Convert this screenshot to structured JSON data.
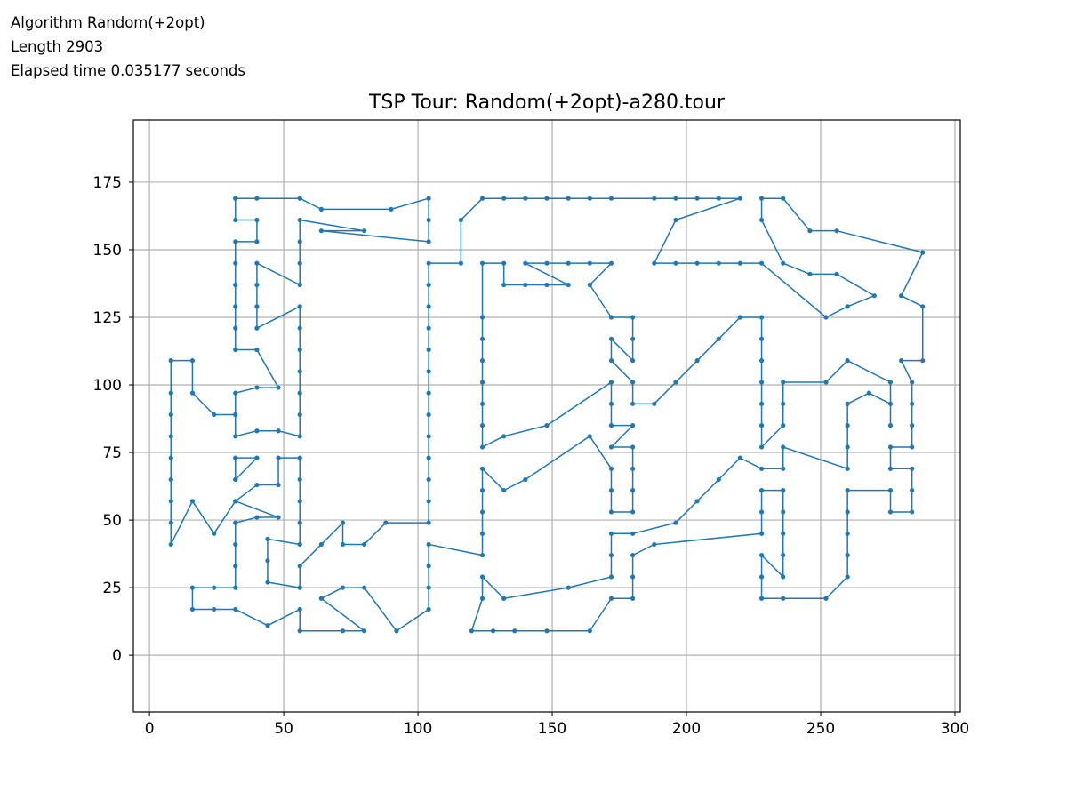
{
  "info": {
    "algorithm": "Algorithm Random(+2opt)",
    "length": "Length 2903",
    "elapsed": "Elapsed time 0.035177 seconds"
  },
  "chart_data": {
    "type": "line",
    "title": "TSP Tour: Random(+2opt)-a280.tour",
    "xlabel": "",
    "ylabel": "",
    "xlim": [
      -6,
      302
    ],
    "ylim": [
      -21,
      198
    ],
    "xticks": [
      0,
      50,
      100,
      150,
      200,
      250,
      300
    ],
    "yticks": [
      0,
      25,
      50,
      75,
      100,
      125,
      150,
      175
    ],
    "grid": true,
    "line_color": "#1f77b4",
    "marker_color": "#1f77b4",
    "series": [
      {
        "points": [
          [
            32,
            169
          ],
          [
            40,
            169
          ],
          [
            56,
            169
          ],
          [
            64,
            165
          ],
          [
            90,
            165
          ],
          [
            104,
            169
          ],
          [
            104,
            161
          ],
          [
            104,
            153
          ],
          [
            64,
            157
          ],
          [
            80,
            157
          ],
          [
            56,
            161
          ],
          [
            56,
            153
          ],
          [
            56,
            145
          ],
          [
            56,
            137
          ],
          [
            40,
            145
          ],
          [
            40,
            137
          ],
          [
            40,
            129
          ],
          [
            40,
            121
          ],
          [
            56,
            129
          ],
          [
            56,
            121
          ],
          [
            56,
            113
          ],
          [
            56,
            105
          ],
          [
            56,
            97
          ],
          [
            56,
            89
          ],
          [
            56,
            81
          ],
          [
            48,
            83
          ],
          [
            40,
            83
          ],
          [
            32,
            81
          ],
          [
            32,
            89
          ],
          [
            32,
            97
          ],
          [
            40,
            99
          ],
          [
            48,
            99
          ],
          [
            40,
            113
          ],
          [
            32,
            113
          ],
          [
            32,
            121
          ],
          [
            32,
            129
          ],
          [
            32,
            137
          ],
          [
            32,
            145
          ],
          [
            32,
            153
          ],
          [
            40,
            153
          ],
          [
            40,
            161
          ],
          [
            32,
            161
          ],
          [
            32,
            169
          ]
        ]
      },
      {
        "points": [
          [
            8,
            109
          ],
          [
            16,
            109
          ],
          [
            16,
            97
          ],
          [
            24,
            89
          ],
          [
            32,
            89
          ]
        ]
      },
      {
        "points": [
          [
            8,
            109
          ],
          [
            8,
            97
          ],
          [
            8,
            89
          ],
          [
            8,
            81
          ],
          [
            8,
            73
          ],
          [
            8,
            65
          ],
          [
            8,
            57
          ],
          [
            8,
            49
          ],
          [
            8,
            41
          ],
          [
            16,
            57
          ],
          [
            24,
            45
          ],
          [
            32,
            57
          ],
          [
            40,
            63
          ],
          [
            48,
            63
          ],
          [
            48,
            73
          ],
          [
            56,
            73
          ],
          [
            56,
            65
          ],
          [
            56,
            57
          ],
          [
            56,
            49
          ],
          [
            56,
            41
          ],
          [
            44,
            43
          ],
          [
            44,
            35
          ],
          [
            44,
            27
          ],
          [
            56,
            25
          ],
          [
            56,
            33
          ],
          [
            64,
            41
          ],
          [
            72,
            49
          ],
          [
            72,
            41
          ],
          [
            80,
            41
          ],
          [
            88,
            49
          ],
          [
            104,
            49
          ],
          [
            104,
            57
          ],
          [
            104,
            65
          ],
          [
            104,
            73
          ],
          [
            104,
            81
          ],
          [
            104,
            89
          ],
          [
            104,
            97
          ],
          [
            104,
            105
          ],
          [
            104,
            113
          ],
          [
            104,
            121
          ],
          [
            104,
            129
          ],
          [
            104,
            137
          ],
          [
            104,
            145
          ],
          [
            116,
            145
          ],
          [
            116,
            161
          ],
          [
            124,
            169
          ],
          [
            132,
            169
          ],
          [
            140,
            169
          ],
          [
            148,
            169
          ],
          [
            156,
            169
          ],
          [
            164,
            169
          ],
          [
            172,
            169
          ],
          [
            188,
            169
          ],
          [
            196,
            169
          ],
          [
            204,
            169
          ],
          [
            212,
            169
          ],
          [
            220,
            169
          ],
          [
            196,
            161
          ],
          [
            188,
            145
          ],
          [
            196,
            145
          ],
          [
            204,
            145
          ],
          [
            212,
            145
          ],
          [
            220,
            145
          ],
          [
            228,
            145
          ],
          [
            252,
            125
          ],
          [
            260,
            129
          ],
          [
            270,
            133
          ],
          [
            256,
            141
          ],
          [
            246,
            141
          ],
          [
            236,
            145
          ],
          [
            228,
            161
          ],
          [
            228,
            169
          ],
          [
            236,
            169
          ],
          [
            246,
            157
          ],
          [
            256,
            157
          ],
          [
            288,
            149
          ],
          [
            280,
            133
          ],
          [
            288,
            129
          ],
          [
            288,
            109
          ],
          [
            280,
            109
          ],
          [
            284,
            101
          ],
          [
            284,
            93
          ],
          [
            284,
            85
          ],
          [
            284,
            77
          ],
          [
            276,
            77
          ],
          [
            276,
            69
          ],
          [
            284,
            69
          ],
          [
            284,
            61
          ],
          [
            284,
            53
          ],
          [
            276,
            53
          ],
          [
            276,
            61
          ],
          [
            260,
            61
          ],
          [
            260,
            53
          ],
          [
            260,
            45
          ],
          [
            260,
            37
          ],
          [
            260,
            29
          ],
          [
            252,
            21
          ],
          [
            236,
            21
          ],
          [
            228,
            21
          ],
          [
            228,
            29
          ],
          [
            228,
            37
          ],
          [
            236,
            29
          ],
          [
            236,
            37
          ],
          [
            236,
            45
          ],
          [
            236,
            53
          ],
          [
            236,
            61
          ],
          [
            228,
            61
          ],
          [
            228,
            53
          ],
          [
            228,
            45
          ],
          [
            188,
            41
          ],
          [
            180,
            37
          ],
          [
            180,
            29
          ],
          [
            180,
            21
          ],
          [
            172,
            21
          ],
          [
            164,
            9
          ],
          [
            148,
            9
          ],
          [
            136,
            9
          ],
          [
            128,
            9
          ],
          [
            120,
            9
          ],
          [
            124,
            21
          ],
          [
            124,
            29
          ],
          [
            132,
            21
          ],
          [
            156,
            25
          ],
          [
            172,
            29
          ],
          [
            172,
            37
          ],
          [
            172,
            45
          ],
          [
            180,
            45
          ],
          [
            196,
            49
          ],
          [
            204,
            57
          ],
          [
            212,
            65
          ],
          [
            220,
            73
          ],
          [
            228,
            69
          ],
          [
            236,
            69
          ],
          [
            236,
            77
          ],
          [
            260,
            69
          ],
          [
            260,
            77
          ],
          [
            260,
            85
          ],
          [
            260,
            93
          ],
          [
            268,
            97
          ],
          [
            276,
            93
          ],
          [
            276,
            85
          ],
          [
            276,
            101
          ],
          [
            260,
            109
          ],
          [
            252,
            101
          ],
          [
            236,
            101
          ],
          [
            236,
            93
          ],
          [
            236,
            85
          ],
          [
            228,
            77
          ],
          [
            228,
            85
          ],
          [
            228,
            93
          ],
          [
            228,
            101
          ],
          [
            228,
            109
          ],
          [
            228,
            117
          ],
          [
            228,
            125
          ],
          [
            220,
            125
          ],
          [
            212,
            117
          ],
          [
            204,
            109
          ],
          [
            196,
            101
          ],
          [
            188,
            93
          ],
          [
            180,
            93
          ],
          [
            180,
            101
          ],
          [
            172,
            109
          ],
          [
            172,
            117
          ],
          [
            180,
            109
          ],
          [
            180,
            117
          ],
          [
            180,
            125
          ],
          [
            172,
            125
          ],
          [
            164,
            137
          ],
          [
            172,
            145
          ],
          [
            164,
            145
          ],
          [
            156,
            145
          ],
          [
            148,
            145
          ],
          [
            140,
            145
          ],
          [
            156,
            137
          ],
          [
            148,
            137
          ],
          [
            140,
            137
          ],
          [
            132,
            137
          ],
          [
            132,
            145
          ],
          [
            124,
            145
          ],
          [
            124,
            125
          ],
          [
            124,
            117
          ],
          [
            124,
            109
          ],
          [
            124,
            101
          ],
          [
            124,
            93
          ],
          [
            124,
            85
          ],
          [
            124,
            77
          ],
          [
            132,
            81
          ],
          [
            148,
            85
          ],
          [
            172,
            101
          ],
          [
            172,
            93
          ],
          [
            172,
            85
          ],
          [
            180,
            85
          ],
          [
            172,
            77
          ],
          [
            180,
            77
          ],
          [
            180,
            69
          ],
          [
            180,
            61
          ],
          [
            180,
            53
          ],
          [
            172,
            53
          ],
          [
            172,
            61
          ],
          [
            172,
            69
          ],
          [
            164,
            81
          ],
          [
            140,
            65
          ],
          [
            132,
            61
          ],
          [
            124,
            69
          ],
          [
            124,
            61
          ],
          [
            124,
            53
          ],
          [
            124,
            45
          ],
          [
            124,
            37
          ],
          [
            104,
            41
          ],
          [
            104,
            33
          ],
          [
            104,
            25
          ],
          [
            104,
            17
          ],
          [
            92,
            9
          ],
          [
            80,
            25
          ],
          [
            72,
            25
          ],
          [
            64,
            21
          ],
          [
            80,
            9
          ],
          [
            72,
            9
          ],
          [
            56,
            9
          ],
          [
            56,
            17
          ],
          [
            44,
            11
          ],
          [
            32,
            17
          ],
          [
            24,
            17
          ],
          [
            16,
            17
          ],
          [
            16,
            25
          ],
          [
            24,
            25
          ],
          [
            32,
            25
          ],
          [
            32,
            33
          ],
          [
            32,
            41
          ],
          [
            32,
            49
          ],
          [
            40,
            51
          ],
          [
            48,
            51
          ],
          [
            32,
            57
          ]
        ]
      },
      {
        "points": [
          [
            32,
            65
          ],
          [
            40,
            73
          ],
          [
            32,
            73
          ],
          [
            32,
            65
          ]
        ]
      }
    ]
  }
}
